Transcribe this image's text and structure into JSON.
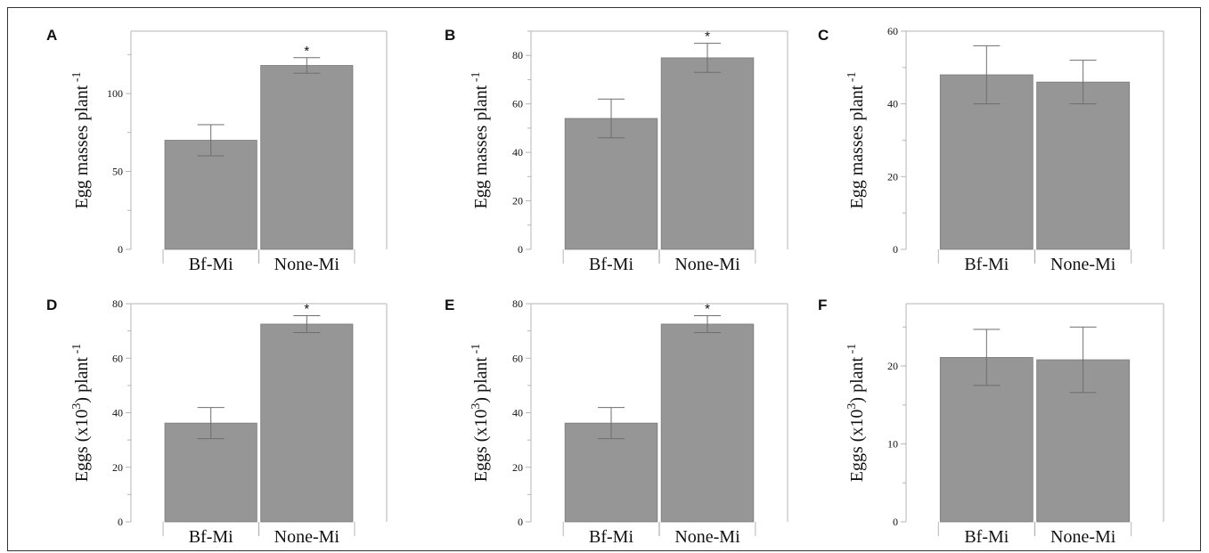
{
  "chart_data": [
    {
      "panel": "A",
      "type": "bar",
      "categories": [
        "Bf-Mi",
        "None-Mi"
      ],
      "values": [
        70,
        118
      ],
      "error": [
        10,
        5
      ],
      "significance": [
        "",
        "*"
      ],
      "ylabel": "Egg masses plant",
      "ylabel_sup": "-1",
      "ylim": [
        0,
        140
      ],
      "yticks": [
        0,
        50,
        100
      ],
      "color": "#969696"
    },
    {
      "panel": "B",
      "type": "bar",
      "categories": [
        "Bf-Mi",
        "None-Mi"
      ],
      "values": [
        54,
        79
      ],
      "error": [
        8,
        6
      ],
      "significance": [
        "",
        "*"
      ],
      "ylabel": "Egg masses plant",
      "ylabel_sup": "-1",
      "ylim": [
        0,
        90
      ],
      "yticks": [
        0,
        20,
        40,
        60,
        80
      ],
      "color": "#969696"
    },
    {
      "panel": "C",
      "type": "bar",
      "categories": [
        "Bf-Mi",
        "None-Mi"
      ],
      "values": [
        48,
        46
      ],
      "error": [
        8,
        6
      ],
      "significance": [
        "",
        ""
      ],
      "ylabel": "Egg masses plant",
      "ylabel_sup": "-1",
      "ylim": [
        0,
        60
      ],
      "yticks": [
        0,
        20,
        40,
        60
      ],
      "color": "#969696"
    },
    {
      "panel": "D",
      "type": "bar",
      "categories": [
        "Bf-Mi",
        "None-Mi"
      ],
      "values": [
        36.2,
        72.5
      ],
      "error": [
        5.7,
        3.1
      ],
      "significance": [
        "",
        "*"
      ],
      "ylabel": "Eggs (x10",
      "ylabel_exp": "3",
      "ylabel_tail": ") plant",
      "ylabel_sup": "-1",
      "ylim": [
        0,
        80
      ],
      "yticks": [
        0,
        20,
        40,
        60,
        80
      ],
      "color": "#969696"
    },
    {
      "panel": "E",
      "type": "bar",
      "categories": [
        "Bf-Mi",
        "None-Mi"
      ],
      "values": [
        36.2,
        72.5
      ],
      "error": [
        5.7,
        3.1
      ],
      "significance": [
        "",
        "*"
      ],
      "ylabel": "Eggs (x10",
      "ylabel_exp": "3",
      "ylabel_tail": ") plant",
      "ylabel_sup": "-1",
      "ylim": [
        0,
        80
      ],
      "yticks": [
        0,
        20,
        40,
        60,
        80
      ],
      "color": "#969696"
    },
    {
      "panel": "F",
      "type": "bar",
      "categories": [
        "Bf-Mi",
        "None-Mi"
      ],
      "values": [
        21.1,
        20.8
      ],
      "error": [
        3.6,
        4.2
      ],
      "significance": [
        "",
        ""
      ],
      "ylabel": "Eggs (x10",
      "ylabel_exp": "3",
      "ylabel_tail": ") plant",
      "ylabel_sup": "-1",
      "ylim": [
        0,
        28
      ],
      "yticks": [
        0,
        10,
        20
      ],
      "color": "#969696"
    }
  ]
}
